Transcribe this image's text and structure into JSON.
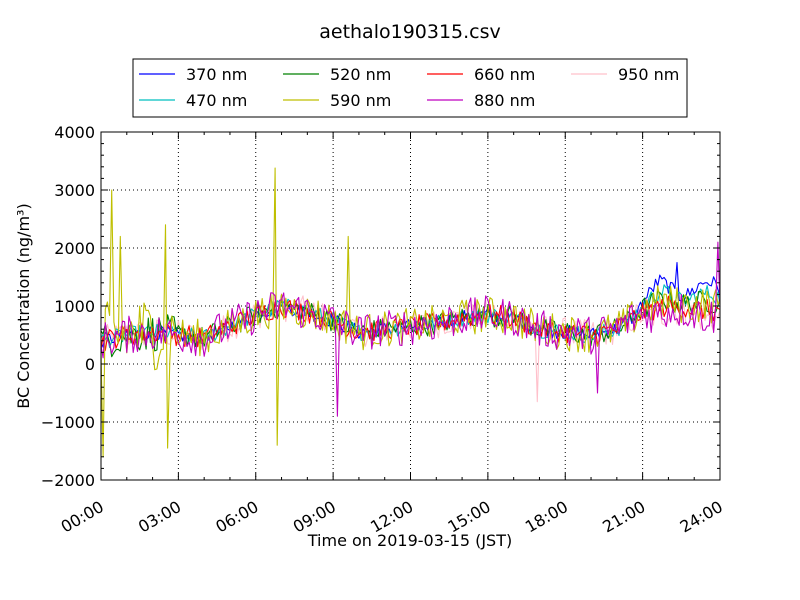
{
  "chart_data": {
    "type": "line",
    "title": "aethalo190315.csv",
    "xlabel": "Time on 2019-03-15 (JST)",
    "ylabel": "BC Concentration (ng/m³)",
    "xlim": [
      0,
      24
    ],
    "ylim": [
      -2000,
      4000
    ],
    "x_ticks": [
      "00:00",
      "03:00",
      "06:00",
      "09:00",
      "12:00",
      "15:00",
      "18:00",
      "21:00",
      "24:00"
    ],
    "y_ticks": [
      "−2000",
      "−1000",
      "0",
      "1000",
      "2000",
      "3000",
      "4000"
    ],
    "grid": true,
    "legend_position": "top",
    "series": [
      {
        "name": "370 nm",
        "color": "#0000ff"
      },
      {
        "name": "470 nm",
        "color": "#00bfbf"
      },
      {
        "name": "520 nm",
        "color": "#008000"
      },
      {
        "name": "590 nm",
        "color": "#bfbf00"
      },
      {
        "name": "660 nm",
        "color": "#ff0000"
      },
      {
        "name": "880 nm",
        "color": "#bf00bf"
      },
      {
        "name": "950 nm",
        "color": "#ffc0cb"
      }
    ],
    "anchors_hours": [
      0,
      1,
      2,
      3,
      4,
      5,
      6,
      7,
      8,
      9,
      10,
      11,
      12,
      13,
      14,
      15,
      16,
      17,
      18,
      19,
      20,
      21,
      22,
      23,
      24
    ],
    "baseline_values": [
      400,
      500,
      550,
      500,
      450,
      650,
      850,
      1000,
      900,
      750,
      550,
      600,
      650,
      700,
      800,
      850,
      800,
      600,
      550,
      500,
      600,
      900,
      1000,
      950,
      900
    ],
    "series_offsets_evening": [
      500,
      300,
      150,
      100,
      0,
      -100,
      -150
    ],
    "spikes": [
      {
        "series": "590 nm",
        "x": 0.4,
        "y": 3000
      },
      {
        "series": "590 nm",
        "x": 0.1,
        "y": -1600
      },
      {
        "series": "590 nm",
        "x": 0.75,
        "y": 2200
      },
      {
        "series": "590 nm",
        "x": 2.5,
        "y": 2400
      },
      {
        "series": "590 nm",
        "x": 2.6,
        "y": -1450
      },
      {
        "series": "590 nm",
        "x": 6.75,
        "y": 3380
      },
      {
        "series": "590 nm",
        "x": 6.8,
        "y": -1400
      },
      {
        "series": "590 nm",
        "x": 9.6,
        "y": 2200
      },
      {
        "series": "880 nm",
        "x": 9.15,
        "y": -900
      },
      {
        "series": "880 nm",
        "x": 19.25,
        "y": -500
      },
      {
        "series": "880 nm",
        "x": 23.9,
        "y": 2100
      },
      {
        "series": "950 nm",
        "x": 16.9,
        "y": -650
      },
      {
        "series": "370 nm",
        "x": 22.3,
        "y": 1750
      }
    ]
  }
}
